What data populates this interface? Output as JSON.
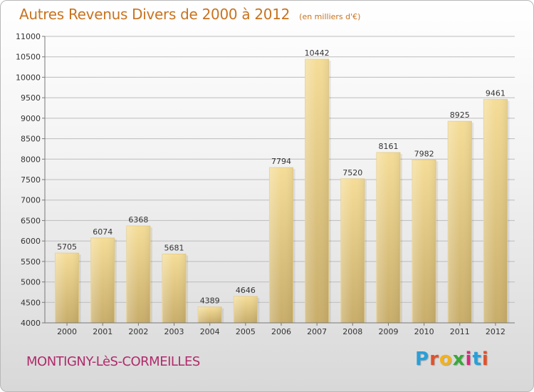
{
  "chart_data": {
    "type": "bar",
    "title": "Autres Revenus Divers de 2000 à 2012",
    "subtitle": "(en milliers d'€)",
    "categories": [
      "2000",
      "2001",
      "2002",
      "2003",
      "2004",
      "2005",
      "2006",
      "2007",
      "2008",
      "2009",
      "2010",
      "2011",
      "2012"
    ],
    "values": [
      5705,
      6074,
      6368,
      5681,
      4389,
      4646,
      7794,
      10442,
      7520,
      8161,
      7982,
      8925,
      9461
    ],
    "ylim": [
      4000,
      11000
    ],
    "yticks": [
      4000,
      4500,
      5000,
      5500,
      6000,
      6500,
      7000,
      7500,
      8000,
      8500,
      9000,
      9500,
      10000,
      10500,
      11000
    ],
    "grid": true,
    "bar_color_top": "#f5dd98",
    "bar_color_bottom": "#c8ad6a",
    "grid_color": "#bdbdbd"
  },
  "footer": {
    "city": "MONTIGNY-LèS-CORMEILLES",
    "city_color": "#b02b6b"
  },
  "brand": {
    "letters": [
      "P",
      "r",
      "o",
      "x",
      "i",
      "t",
      "i"
    ],
    "colors": [
      "#2a9fd8",
      "#e0522b",
      "#f2b21d",
      "#3aa83a",
      "#d8287a",
      "#2a9fd8",
      "#e0522b"
    ]
  }
}
